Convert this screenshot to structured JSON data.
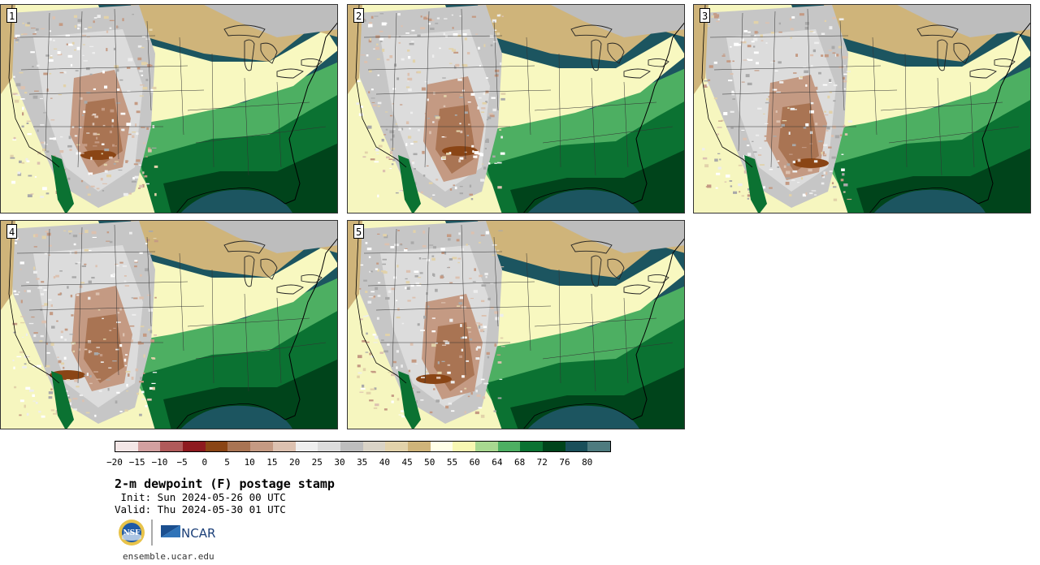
{
  "panels": [
    {
      "label": "1"
    },
    {
      "label": "2"
    },
    {
      "label": "3"
    },
    {
      "label": "4"
    },
    {
      "label": "5"
    }
  ],
  "colorbar": {
    "colors": [
      "#f3e6e6",
      "#d2a0a0",
      "#b05a5a",
      "#8e1a1f",
      "#8a4515",
      "#a97453",
      "#c49a83",
      "#dcc1b0",
      "#eeeeee",
      "#dcdcdc",
      "#bdbdbd",
      "#d9d3c6",
      "#e2d2aa",
      "#cfb47a",
      "#ffffe8",
      "#f8f8b2",
      "#a8d890",
      "#4daf62",
      "#0b7232",
      "#00441b",
      "#1a4f5a",
      "#4e7b7f"
    ],
    "ticks": [
      "−20",
      "−15",
      "−10",
      "−5",
      "0",
      "5",
      "10",
      "15",
      "20",
      "25",
      "30",
      "35",
      "40",
      "45",
      "50",
      "55",
      "60",
      "64",
      "68",
      "72",
      "76",
      "80"
    ]
  },
  "info": {
    "title": "2-m dewpoint (F) postage stamp",
    "init": " Init: Sun 2024-05-26 00 UTC",
    "valid": "Valid: Thu 2024-05-30 01 UTC",
    "site": "ensemble.ucar.edu"
  },
  "logos": {
    "nsf_text": "NSF",
    "ncar_text": "NCAR"
  }
}
